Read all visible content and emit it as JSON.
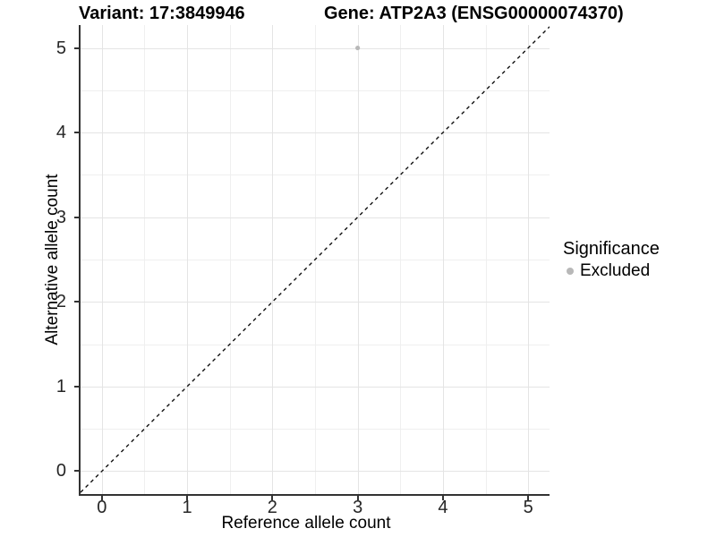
{
  "titles": {
    "variant": "Variant: 17:3849946",
    "gene": "Gene: ATP2A3 (ENSG00000074370)"
  },
  "axes": {
    "x": {
      "label": "Reference allele count",
      "tick_labels": [
        "0",
        "1",
        "2",
        "3",
        "4",
        "5"
      ],
      "tick_values": [
        0,
        1,
        2,
        3,
        4,
        5
      ]
    },
    "y": {
      "label": "Alternative allele count",
      "tick_labels": [
        "0",
        "1",
        "2",
        "3",
        "4",
        "5"
      ],
      "tick_values": [
        0,
        1,
        2,
        3,
        4,
        5
      ]
    }
  },
  "legend": {
    "title": "Significance",
    "items": [
      {
        "label": "Excluded",
        "color": "#b8b8b8"
      }
    ]
  },
  "colors": {
    "major_grid": "#e4e4e4",
    "minor_grid": "#efefef",
    "axis_line": "#333333",
    "diagonal_line": "#111111",
    "point": "#b8b8b8"
  },
  "chart_data": {
    "type": "scatter",
    "title": "Variant: 17:3849946 | Gene: ATP2A3 (ENSG00000074370)",
    "xlabel": "Reference allele count",
    "ylabel": "Alternative allele count",
    "xlim": [
      -0.25,
      5.25
    ],
    "ylim": [
      -0.27,
      5.27
    ],
    "x_ticks": [
      0,
      1,
      2,
      3,
      4,
      5
    ],
    "y_ticks": [
      0,
      1,
      2,
      3,
      4,
      5
    ],
    "grid": "major at integers, minor at half-integers",
    "legend_position": "right",
    "series": [
      {
        "name": "Excluded",
        "color": "#b8b8b8",
        "points": [
          {
            "x": 3,
            "y": 5
          }
        ]
      }
    ],
    "reference_line": {
      "equation": "y = x",
      "style": "dashed",
      "color": "#111111"
    }
  }
}
